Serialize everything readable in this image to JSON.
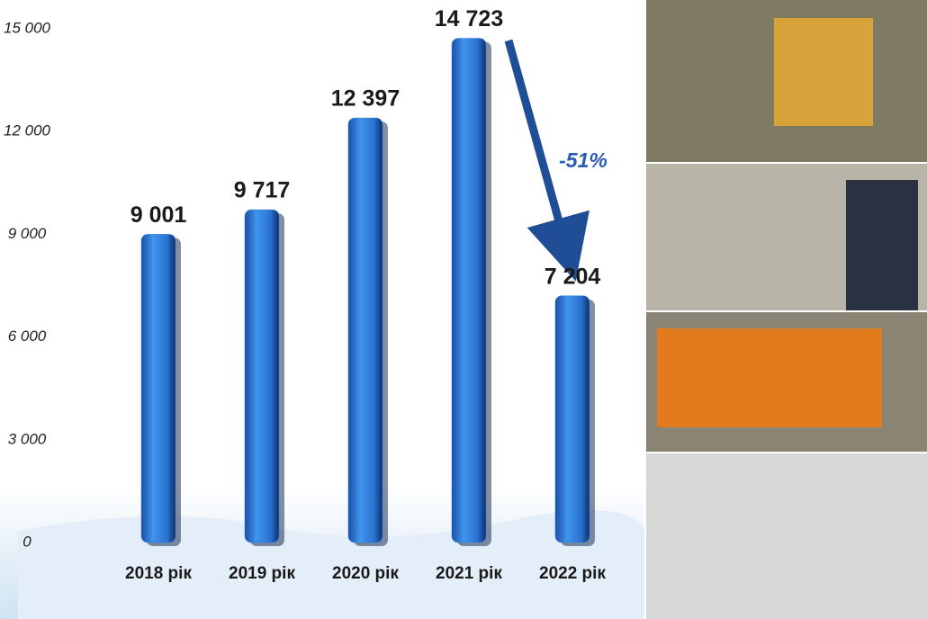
{
  "chart_data": {
    "type": "bar",
    "categories": [
      "2018 рік",
      "2019 рік",
      "2020 рік",
      "2021 рік",
      "2022 рік"
    ],
    "values": [
      9001,
      9717,
      12397,
      14723,
      7204
    ],
    "value_labels": [
      "9 001",
      "9 717",
      "12 397",
      "14 723",
      "7 204"
    ],
    "color": "#2f7fd8",
    "ylim": [
      0,
      15000
    ],
    "yticks": [
      0,
      {
        "value": 3000,
        "label": "3 000"
      },
      {
        "value": 6000,
        "label": "6 000"
      },
      {
        "value": 9000,
        "label": "9 000"
      },
      {
        "value": 12000,
        "label": "12 000"
      },
      {
        "value": 15000,
        "label": "15 000"
      }
    ],
    "annotation": "-51%"
  }
}
